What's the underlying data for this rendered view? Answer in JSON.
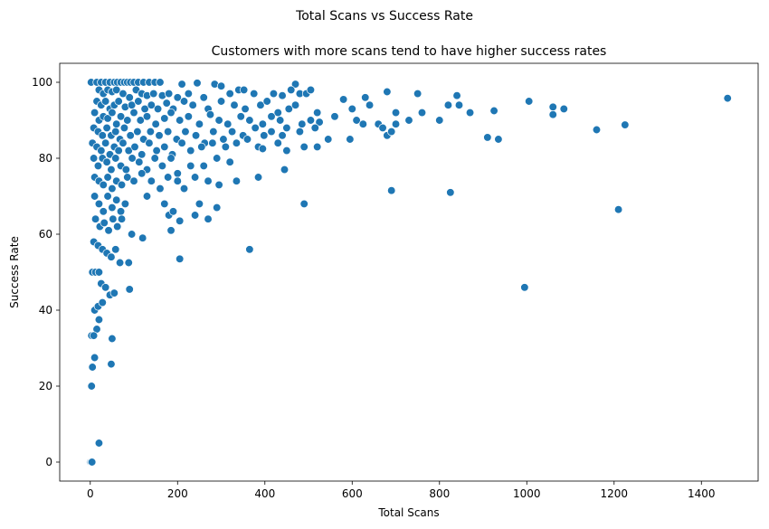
{
  "chart_data": {
    "type": "scatter",
    "suptitle": "Total Scans vs Success Rate",
    "title": "Customers with more scans tend to have higher success rates",
    "xlabel": "Total Scans",
    "ylabel": "Success Rate",
    "xlim": [
      -70,
      1530
    ],
    "ylim": [
      -5,
      105
    ],
    "xticks": [
      0,
      200,
      400,
      600,
      800,
      1000,
      1200,
      1400
    ],
    "yticks": [
      0,
      20,
      40,
      60,
      80,
      100
    ],
    "grid": false,
    "color": "#1f77b4",
    "points": [
      [
        1,
        100
      ],
      [
        2,
        100
      ],
      [
        15,
        100
      ],
      [
        25,
        100
      ],
      [
        35,
        100
      ],
      [
        45,
        100
      ],
      [
        55,
        100
      ],
      [
        62,
        100
      ],
      [
        70,
        100
      ],
      [
        78,
        100
      ],
      [
        85,
        100
      ],
      [
        92,
        100
      ],
      [
        100,
        100
      ],
      [
        110,
        100
      ],
      [
        122,
        100
      ],
      [
        135,
        100
      ],
      [
        148,
        100
      ],
      [
        160,
        100
      ],
      [
        210,
        99.5
      ],
      [
        245,
        99.8
      ],
      [
        285,
        99.5
      ],
      [
        300,
        99
      ],
      [
        470,
        99.5
      ],
      [
        20,
        98
      ],
      [
        30,
        97
      ],
      [
        40,
        98
      ],
      [
        50,
        97.5
      ],
      [
        60,
        98
      ],
      [
        75,
        97
      ],
      [
        90,
        96
      ],
      [
        105,
        98
      ],
      [
        118,
        97
      ],
      [
        130,
        96.5
      ],
      [
        145,
        97
      ],
      [
        165,
        96.5
      ],
      [
        180,
        97
      ],
      [
        200,
        96
      ],
      [
        225,
        97
      ],
      [
        260,
        96
      ],
      [
        320,
        97
      ],
      [
        340,
        98
      ],
      [
        352,
        98
      ],
      [
        375,
        97
      ],
      [
        420,
        97
      ],
      [
        440,
        96.5
      ],
      [
        460,
        98
      ],
      [
        480,
        97
      ],
      [
        495,
        97
      ],
      [
        505,
        98
      ],
      [
        580,
        95.5
      ],
      [
        630,
        96
      ],
      [
        680,
        97.5
      ],
      [
        750,
        97
      ],
      [
        840,
        96.5
      ],
      [
        1005,
        95
      ],
      [
        1460,
        95.8
      ],
      [
        15,
        95
      ],
      [
        25,
        94
      ],
      [
        35,
        95
      ],
      [
        45,
        93
      ],
      [
        55,
        94
      ],
      [
        65,
        95
      ],
      [
        80,
        93.5
      ],
      [
        95,
        94
      ],
      [
        110,
        95
      ],
      [
        125,
        93
      ],
      [
        140,
        94
      ],
      [
        155,
        93
      ],
      [
        175,
        94.5
      ],
      [
        190,
        93
      ],
      [
        215,
        95
      ],
      [
        235,
        94
      ],
      [
        270,
        93
      ],
      [
        300,
        95
      ],
      [
        330,
        94
      ],
      [
        355,
        93
      ],
      [
        390,
        94
      ],
      [
        405,
        95
      ],
      [
        430,
        92
      ],
      [
        455,
        93
      ],
      [
        470,
        94
      ],
      [
        520,
        92
      ],
      [
        600,
        93
      ],
      [
        640,
        94
      ],
      [
        700,
        92
      ],
      [
        760,
        92
      ],
      [
        820,
        94
      ],
      [
        845,
        94
      ],
      [
        925,
        92.5
      ],
      [
        1060,
        93.5
      ],
      [
        1085,
        93
      ],
      [
        10,
        92
      ],
      [
        20,
        90
      ],
      [
        30,
        91
      ],
      [
        40,
        90.5
      ],
      [
        50,
        92
      ],
      [
        60,
        89
      ],
      [
        70,
        91
      ],
      [
        85,
        90
      ],
      [
        100,
        92
      ],
      [
        115,
        90
      ],
      [
        130,
        91
      ],
      [
        150,
        89
      ],
      [
        170,
        90.5
      ],
      [
        185,
        92
      ],
      [
        205,
        90
      ],
      [
        225,
        91
      ],
      [
        250,
        89
      ],
      [
        275,
        91.5
      ],
      [
        295,
        90
      ],
      [
        315,
        89
      ],
      [
        345,
        91
      ],
      [
        365,
        90
      ],
      [
        395,
        89
      ],
      [
        415,
        91
      ],
      [
        435,
        90
      ],
      [
        450,
        88
      ],
      [
        485,
        89
      ],
      [
        505,
        90
      ],
      [
        525,
        89.5
      ],
      [
        560,
        91
      ],
      [
        610,
        90
      ],
      [
        625,
        89
      ],
      [
        660,
        89
      ],
      [
        700,
        89
      ],
      [
        730,
        90
      ],
      [
        800,
        90
      ],
      [
        870,
        92
      ],
      [
        1060,
        91.5
      ],
      [
        1225,
        88.8
      ],
      [
        8,
        88
      ],
      [
        18,
        87
      ],
      [
        28,
        86
      ],
      [
        38,
        88
      ],
      [
        48,
        86
      ],
      [
        58,
        87
      ],
      [
        68,
        85
      ],
      [
        78,
        88
      ],
      [
        92,
        86
      ],
      [
        108,
        87
      ],
      [
        122,
        85
      ],
      [
        138,
        87
      ],
      [
        158,
        86
      ],
      [
        178,
        87
      ],
      [
        198,
        85
      ],
      [
        218,
        87
      ],
      [
        242,
        86
      ],
      [
        262,
        84
      ],
      [
        282,
        87
      ],
      [
        305,
        85
      ],
      [
        325,
        87
      ],
      [
        350,
        86
      ],
      [
        378,
        88
      ],
      [
        398,
        86
      ],
      [
        415,
        87
      ],
      [
        440,
        86
      ],
      [
        480,
        87
      ],
      [
        515,
        88
      ],
      [
        545,
        85
      ],
      [
        595,
        85
      ],
      [
        670,
        88
      ],
      [
        680,
        86
      ],
      [
        690,
        87
      ],
      [
        910,
        85.5
      ],
      [
        935,
        85
      ],
      [
        1160,
        87.5
      ],
      [
        5,
        84
      ],
      [
        15,
        83
      ],
      [
        25,
        82
      ],
      [
        35,
        84
      ],
      [
        45,
        81
      ],
      [
        55,
        83
      ],
      [
        65,
        82
      ],
      [
        75,
        84
      ],
      [
        88,
        82
      ],
      [
        102,
        83
      ],
      [
        118,
        81
      ],
      [
        135,
        84
      ],
      [
        152,
        82
      ],
      [
        170,
        83
      ],
      [
        188,
        81
      ],
      [
        210,
        84
      ],
      [
        230,
        82
      ],
      [
        255,
        83
      ],
      [
        280,
        84
      ],
      [
        310,
        83
      ],
      [
        335,
        84
      ],
      [
        360,
        85
      ],
      [
        385,
        83
      ],
      [
        395,
        82.5
      ],
      [
        430,
        84
      ],
      [
        450,
        82
      ],
      [
        490,
        83
      ],
      [
        520,
        83
      ],
      [
        8,
        80
      ],
      [
        18,
        78
      ],
      [
        28,
        80
      ],
      [
        38,
        79
      ],
      [
        48,
        77
      ],
      [
        58,
        80
      ],
      [
        70,
        78
      ],
      [
        82,
        77
      ],
      [
        96,
        80
      ],
      [
        112,
        79
      ],
      [
        130,
        77
      ],
      [
        148,
        80
      ],
      [
        165,
        78
      ],
      [
        185,
        80
      ],
      [
        200,
        76
      ],
      [
        230,
        78
      ],
      [
        260,
        78
      ],
      [
        290,
        80
      ],
      [
        320,
        79
      ],
      [
        445,
        77
      ],
      [
        10,
        75
      ],
      [
        20,
        74
      ],
      [
        30,
        73
      ],
      [
        40,
        75
      ],
      [
        50,
        72
      ],
      [
        60,
        74
      ],
      [
        72,
        73
      ],
      [
        85,
        75
      ],
      [
        100,
        74
      ],
      [
        118,
        76
      ],
      [
        140,
        74
      ],
      [
        160,
        72
      ],
      [
        178,
        75
      ],
      [
        200,
        74
      ],
      [
        215,
        72
      ],
      [
        240,
        75
      ],
      [
        270,
        74
      ],
      [
        295,
        73
      ],
      [
        335,
        74
      ],
      [
        385,
        75
      ],
      [
        690,
        71.5
      ],
      [
        825,
        71
      ],
      [
        10,
        70
      ],
      [
        20,
        68
      ],
      [
        30,
        66
      ],
      [
        40,
        70
      ],
      [
        50,
        67
      ],
      [
        60,
        69
      ],
      [
        70,
        66
      ],
      [
        80,
        68
      ],
      [
        130,
        70
      ],
      [
        170,
        68
      ],
      [
        180,
        65
      ],
      [
        190,
        66
      ],
      [
        250,
        68
      ],
      [
        290,
        67
      ],
      [
        490,
        68
      ],
      [
        1210,
        66.5
      ],
      [
        12,
        64
      ],
      [
        22,
        62
      ],
      [
        32,
        63
      ],
      [
        42,
        61
      ],
      [
        52,
        64
      ],
      [
        62,
        62
      ],
      [
        72,
        64
      ],
      [
        95,
        60
      ],
      [
        120,
        59
      ],
      [
        185,
        61
      ],
      [
        205,
        63.5
      ],
      [
        240,
        65
      ],
      [
        270,
        64
      ],
      [
        365,
        56
      ],
      [
        8,
        58
      ],
      [
        18,
        57
      ],
      [
        28,
        56
      ],
      [
        38,
        55
      ],
      [
        48,
        54
      ],
      [
        58,
        56
      ],
      [
        68,
        52.5
      ],
      [
        88,
        52.5
      ],
      [
        205,
        53.5
      ],
      [
        5,
        50
      ],
      [
        12,
        50
      ],
      [
        20,
        50
      ],
      [
        25,
        47
      ],
      [
        35,
        46
      ],
      [
        45,
        44
      ],
      [
        55,
        44.5
      ],
      [
        90,
        45.5
      ],
      [
        995,
        46
      ],
      [
        10,
        40
      ],
      [
        18,
        41
      ],
      [
        28,
        42
      ],
      [
        20,
        37.5
      ],
      [
        15,
        35
      ],
      [
        50,
        32.5
      ],
      [
        3,
        33.3
      ],
      [
        8,
        33.3
      ],
      [
        10,
        27.5
      ],
      [
        5,
        25
      ],
      [
        48,
        25.8
      ],
      [
        3,
        20
      ],
      [
        20,
        5
      ],
      [
        0,
        0
      ],
      [
        2,
        0
      ],
      [
        4,
        0
      ]
    ]
  }
}
